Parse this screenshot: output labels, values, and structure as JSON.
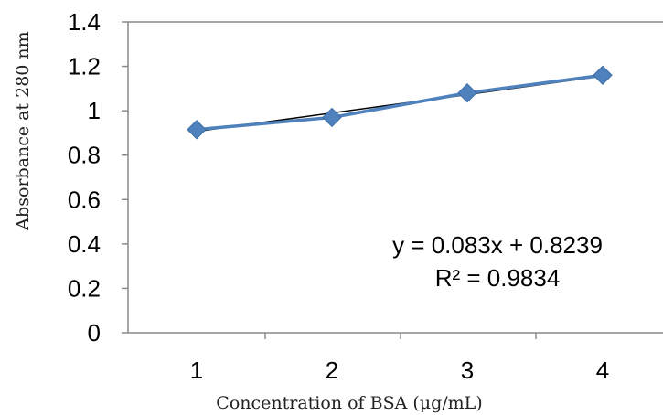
{
  "chart_data": {
    "type": "line",
    "title": "",
    "xlabel": "Concentration of BSA (μg/mL)",
    "ylabel": "Absorbance at 280 nm",
    "x": [
      1,
      2,
      3,
      4
    ],
    "xticks": [
      "1",
      "2",
      "3",
      "4"
    ],
    "ylim": [
      0,
      1.4
    ],
    "yticks": [
      "0",
      "0.2",
      "0.4",
      "0.6",
      "0.8",
      "1",
      "1.2",
      "1.4"
    ],
    "grid": false,
    "series": [
      {
        "values": [
          0.915,
          0.97,
          1.08,
          1.16
        ],
        "color": "#4f81bd",
        "marker": "diamond"
      }
    ],
    "trendline": {
      "type": "linear",
      "slope": 0.083,
      "intercept": 0.8239,
      "color": "#000000"
    },
    "annotations": {
      "equation": "y = 0.083x + 0.8239",
      "r_squared": "R² = 0.9834"
    }
  }
}
